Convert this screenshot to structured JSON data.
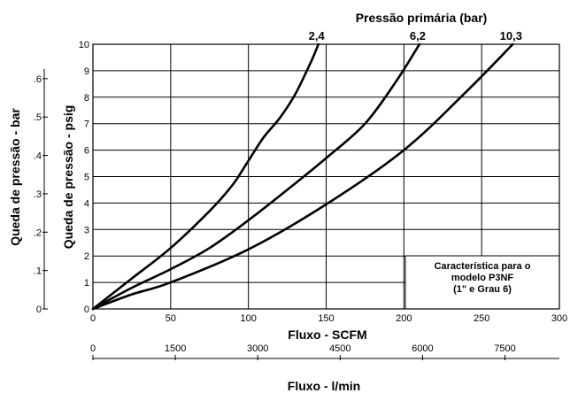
{
  "chart_data": {
    "type": "line",
    "title": "Pressão primária (bar)",
    "xlabel": "Fluxo - SCFM",
    "ylabel": "Queda de pressão - psig",
    "y2label": "Queda de pressão - bar",
    "x2label": "Fluxo - l/min",
    "xlim": [
      0,
      300
    ],
    "ylim": [
      0,
      10
    ],
    "x_ticks": [
      0,
      50,
      100,
      150,
      200,
      250,
      300
    ],
    "y_ticks": [
      0,
      1,
      2,
      3,
      4,
      5,
      6,
      7,
      8,
      9,
      10
    ],
    "y2_ticks": [
      {
        "label": "0",
        "value": 0
      },
      {
        "label": ".1",
        "value": 1.45
      },
      {
        "label": ".2",
        "value": 2.9
      },
      {
        "label": ".3",
        "value": 4.35
      },
      {
        "label": ".4",
        "value": 5.8
      },
      {
        "label": ".5",
        "value": 7.25
      },
      {
        "label": ".6",
        "value": 8.7
      }
    ],
    "x2_ticks": [
      {
        "label": "0",
        "value": 0
      },
      {
        "label": "1500",
        "value": 53
      },
      {
        "label": "3000",
        "value": 106
      },
      {
        "label": "4500",
        "value": 159
      },
      {
        "label": "6000",
        "value": 212
      },
      {
        "label": "7500",
        "value": 265
      }
    ],
    "grid": true,
    "series": [
      {
        "name": "2,4",
        "x": [
          0,
          25,
          50,
          75,
          90,
          100,
          110,
          120,
          130,
          140,
          145
        ],
        "y": [
          0,
          1.15,
          2.3,
          3.7,
          4.7,
          5.6,
          6.5,
          7.2,
          8.1,
          9.3,
          10
        ]
      },
      {
        "name": "6,2",
        "x": [
          0,
          25,
          50,
          75,
          100,
          125,
          150,
          175,
          195,
          210
        ],
        "y": [
          0,
          0.8,
          1.5,
          2.3,
          3.35,
          4.5,
          5.7,
          7.0,
          8.6,
          10
        ]
      },
      {
        "name": "10,3",
        "x": [
          0,
          25,
          50,
          100,
          150,
          200,
          240,
          270
        ],
        "y": [
          0,
          0.55,
          1.0,
          2.25,
          3.95,
          6.0,
          8.2,
          10
        ]
      }
    ],
    "annotation": [
      "Característica para o",
      "modelo P3NF",
      "(1\" e Grau 6)"
    ]
  }
}
